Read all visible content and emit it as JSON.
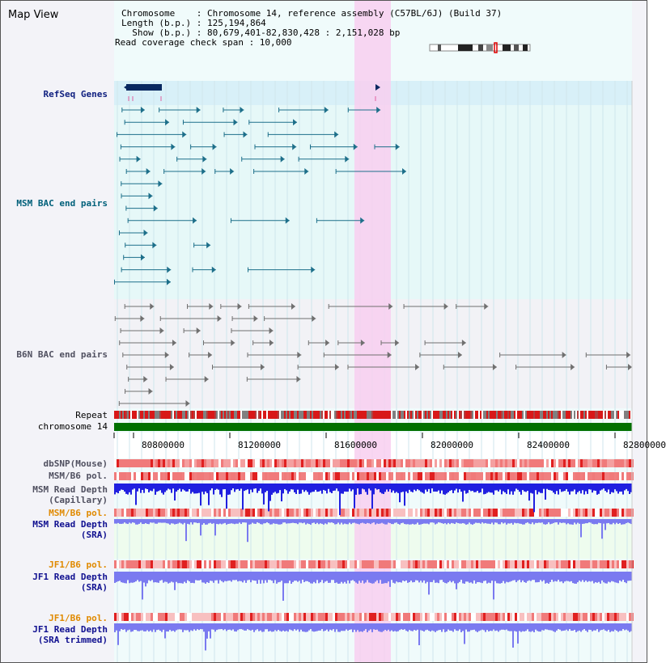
{
  "header": {
    "title": "Map View",
    "chromosome_line": "Chromosome    : Chromosome 14, reference assembly (C57BL/6J) (Build 37)",
    "length_line": "Length (b.p.) : 125,194,864",
    "show_line": "  Show (b.p.) : 80,679,401-82,830,428 : 2,151,028 bp",
    "coverage_line": "Read coverage check span : 10,000"
  },
  "tracks": {
    "refseq": "RefSeq Genes",
    "msm_bac": "MSM BAC end pairs",
    "b6n_bac": "B6N BAC end pairs",
    "repeat": "Repeat",
    "chromosome": "chromosome 14",
    "dbsnp": "dbSNP(Mouse)",
    "msm_b6_pol": "MSM/B6 pol.",
    "msm_read_depth_cap": "MSM Read Depth\n(Capillary)",
    "msm_b6_pol_sra": "MSM/B6 pol.",
    "msm_read_depth_sra": "MSM Read Depth\n(SRA)",
    "jf1_b6_pol": "JF1/B6 pol.",
    "jf1_read_depth_sra": "JF1 Read Depth\n(SRA)",
    "jf1_b6_pol_trim": "JF1/B6 pol.",
    "jf1_read_depth_trim": "JF1 Read Depth\n(SRA trimmed)"
  },
  "axis": {
    "ticks": [
      "80800000",
      "81200000",
      "81600000",
      "82000000",
      "82400000",
      "82800000"
    ]
  },
  "colors": {
    "highlight": "#f8cff0",
    "teal_feature": "#1d6f8a",
    "grey_feature": "#707070",
    "chrom_green": "#007000",
    "depth_blue": "#2020e0",
    "depth_light": "#7a7af0",
    "snp_red": "#e02020"
  }
}
